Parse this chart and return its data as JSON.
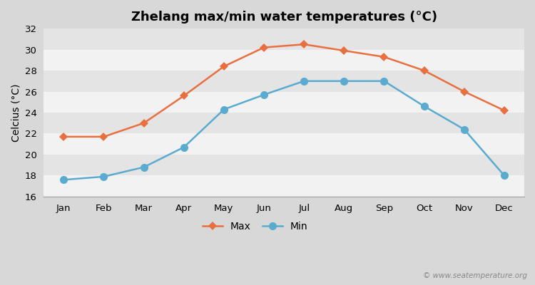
{
  "title": "Zhelang max/min water temperatures (°C)",
  "ylabel": "Celcius (°C)",
  "months": [
    "Jan",
    "Feb",
    "Mar",
    "Apr",
    "May",
    "Jun",
    "Jul",
    "Aug",
    "Sep",
    "Oct",
    "Nov",
    "Dec"
  ],
  "max_values": [
    21.7,
    21.7,
    23.0,
    25.6,
    28.4,
    30.2,
    30.5,
    29.9,
    29.3,
    28.0,
    26.0,
    24.2
  ],
  "min_values": [
    17.6,
    17.9,
    18.8,
    20.7,
    24.3,
    25.7,
    27.0,
    27.0,
    27.0,
    24.6,
    22.4,
    18.0
  ],
  "max_color": "#e87040",
  "min_color": "#5aabcf",
  "outer_bg_color": "#d8d8d8",
  "plot_bg_color": "#ebebeb",
  "band_color_light": "#f2f2f2",
  "band_color_dark": "#e4e4e4",
  "ylim": [
    16,
    32
  ],
  "yticks": [
    16,
    18,
    20,
    22,
    24,
    26,
    28,
    30,
    32
  ],
  "legend_labels": [
    "Max",
    "Min"
  ],
  "watermark": "© www.seatemperature.org",
  "title_fontsize": 13,
  "axis_label_fontsize": 10,
  "tick_fontsize": 9.5,
  "legend_fontsize": 10,
  "line_width": 1.8,
  "max_marker": "D",
  "min_marker": "o",
  "max_marker_size": 6,
  "min_marker_size": 8
}
